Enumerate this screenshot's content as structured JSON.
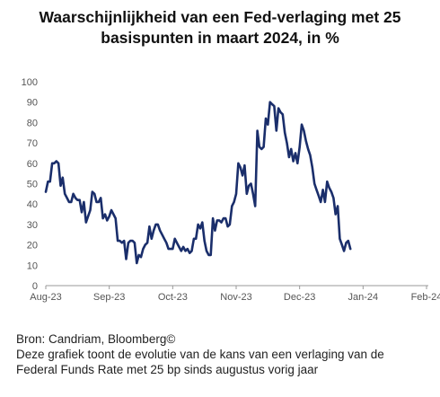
{
  "title_lines": [
    "Waarschijnlijkheid van een Fed-verlaging met 25",
    "basispunten in maart 2024, in %"
  ],
  "footer": {
    "source": "Bron: Candriam, Bloomberg©",
    "description_lines": [
      "Deze grafiek toont de evolutie van de kans van een verlaging van de",
      "Federal Funds Rate met 25 bp sinds augustus vorig jaar"
    ]
  },
  "colors": {
    "line": "#1a2e6b",
    "axis": "#999999",
    "tick_text": "#555555"
  },
  "chart_data": {
    "type": "line",
    "title": "Waarschijnlijkheid van een Fed-verlaging met 25 basispunten in maart 2024, in %",
    "xlabel": "",
    "ylabel": "",
    "ylim": [
      0,
      100
    ],
    "yticks": [
      0,
      10,
      20,
      30,
      40,
      50,
      60,
      70,
      80,
      90,
      100
    ],
    "xticks": [
      {
        "label": "Aug-23",
        "x": 0
      },
      {
        "label": "Sep-23",
        "x": 30
      },
      {
        "label": "Oct-23",
        "x": 60
      },
      {
        "label": "Nov-23",
        "x": 90
      },
      {
        "label": "Dec-23",
        "x": 120
      },
      {
        "label": "Jan-24",
        "x": 150
      },
      {
        "label": "Feb-24",
        "x": 180
      }
    ],
    "x_unit": "days since 2023-08-01",
    "grid": false,
    "series": [
      {
        "name": "",
        "points": [
          [
            0,
            46
          ],
          [
            1,
            51
          ],
          [
            2,
            51
          ],
          [
            3,
            60
          ],
          [
            4,
            60
          ],
          [
            5,
            61
          ],
          [
            6,
            60
          ],
          [
            7,
            49
          ],
          [
            8,
            53
          ],
          [
            9,
            45
          ],
          [
            10,
            43
          ],
          [
            11,
            41
          ],
          [
            12,
            41
          ],
          [
            13,
            45
          ],
          [
            14,
            43
          ],
          [
            15,
            42
          ],
          [
            16,
            42
          ],
          [
            17,
            36
          ],
          [
            18,
            41
          ],
          [
            19,
            31
          ],
          [
            20,
            34
          ],
          [
            21,
            37
          ],
          [
            22,
            46
          ],
          [
            23,
            45
          ],
          [
            24,
            41
          ],
          [
            25,
            41
          ],
          [
            26,
            43
          ],
          [
            27,
            33
          ],
          [
            28,
            35
          ],
          [
            29,
            32
          ],
          [
            30,
            34
          ],
          [
            31,
            37
          ],
          [
            32,
            35
          ],
          [
            33,
            33
          ],
          [
            34,
            22
          ],
          [
            35,
            22
          ],
          [
            36,
            21
          ],
          [
            37,
            22
          ],
          [
            38,
            13
          ],
          [
            39,
            21
          ],
          [
            40,
            22
          ],
          [
            41,
            22
          ],
          [
            42,
            21
          ],
          [
            43,
            11
          ],
          [
            44,
            15
          ],
          [
            45,
            14
          ],
          [
            46,
            18
          ],
          [
            47,
            20
          ],
          [
            48,
            21
          ],
          [
            49,
            29
          ],
          [
            50,
            23
          ],
          [
            51,
            27
          ],
          [
            52,
            30
          ],
          [
            53,
            30
          ],
          [
            54,
            27
          ],
          [
            55,
            25
          ],
          [
            56,
            23
          ],
          [
            57,
            21
          ],
          [
            58,
            18
          ],
          [
            59,
            18
          ],
          [
            60,
            18
          ],
          [
            61,
            23
          ],
          [
            62,
            21
          ],
          [
            63,
            19
          ],
          [
            64,
            17
          ],
          [
            65,
            19
          ],
          [
            66,
            17
          ],
          [
            67,
            18
          ],
          [
            68,
            16
          ],
          [
            69,
            17
          ],
          [
            70,
            23
          ],
          [
            71,
            23
          ],
          [
            72,
            30
          ],
          [
            73,
            28
          ],
          [
            74,
            31
          ],
          [
            75,
            22
          ],
          [
            76,
            17
          ],
          [
            77,
            15
          ],
          [
            78,
            15
          ],
          [
            79,
            33
          ],
          [
            80,
            27
          ],
          [
            81,
            32
          ],
          [
            82,
            32
          ],
          [
            83,
            31
          ],
          [
            84,
            33
          ],
          [
            85,
            33
          ],
          [
            86,
            29
          ],
          [
            87,
            30
          ],
          [
            88,
            39
          ],
          [
            89,
            41
          ],
          [
            90,
            45
          ],
          [
            91,
            60
          ],
          [
            92,
            58
          ],
          [
            93,
            54
          ],
          [
            94,
            59
          ],
          [
            95,
            45
          ],
          [
            96,
            49
          ],
          [
            97,
            50
          ],
          [
            98,
            45
          ],
          [
            99,
            39
          ],
          [
            100,
            76
          ],
          [
            101,
            68
          ],
          [
            102,
            67
          ],
          [
            103,
            68
          ],
          [
            104,
            82
          ],
          [
            105,
            79
          ],
          [
            106,
            90
          ],
          [
            107,
            89
          ],
          [
            108,
            88
          ],
          [
            109,
            76
          ],
          [
            110,
            87
          ],
          [
            111,
            85
          ],
          [
            112,
            84
          ],
          [
            113,
            75
          ],
          [
            114,
            70
          ],
          [
            115,
            63
          ],
          [
            116,
            67
          ],
          [
            117,
            61
          ],
          [
            118,
            65
          ],
          [
            119,
            60
          ],
          [
            120,
            68
          ],
          [
            121,
            79
          ],
          [
            122,
            76
          ],
          [
            123,
            71
          ],
          [
            124,
            67
          ],
          [
            125,
            64
          ],
          [
            126,
            58
          ],
          [
            127,
            50
          ],
          [
            128,
            47
          ],
          [
            129,
            44
          ],
          [
            130,
            41
          ],
          [
            131,
            47
          ],
          [
            132,
            41
          ],
          [
            133,
            51
          ],
          [
            134,
            48
          ],
          [
            135,
            46
          ],
          [
            136,
            43
          ],
          [
            137,
            35
          ],
          [
            138,
            39
          ],
          [
            139,
            23
          ],
          [
            140,
            20
          ],
          [
            141,
            17
          ],
          [
            142,
            21
          ],
          [
            143,
            22
          ],
          [
            144,
            18
          ]
        ]
      }
    ]
  }
}
